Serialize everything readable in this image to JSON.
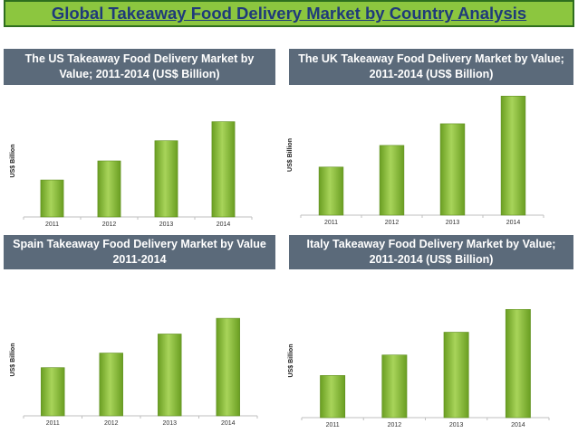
{
  "page": {
    "title": "Global Takeaway Food Delivery Market by Country Analysis",
    "colors": {
      "title_bg": "#8cc63f",
      "title_text": "#1f3a7a",
      "panel_title_bg": "#5b6a7a",
      "bar_light": "#a8d45a",
      "bar_dark": "#6a9e22",
      "axis": "#bfbfbf"
    }
  },
  "chart_data": [
    {
      "type": "bar",
      "title": "The US Takeaway Food Delivery Market by Value; 2011-2014 (US$ Billion)",
      "ylabel": "US$ Billion",
      "categories": [
        "2011",
        "2012",
        "2013",
        "2014"
      ],
      "values": [
        33,
        50,
        68,
        85
      ],
      "ylim": [
        0,
        100
      ],
      "grid": false
    },
    {
      "type": "bar",
      "title": "The UK Takeaway Food Delivery Market by Value; 2011-2014 (US$ Billion)",
      "ylabel": "US$ Billion",
      "categories": [
        "2011",
        "2012",
        "2013",
        "2014"
      ],
      "values": [
        40,
        58,
        76,
        99
      ],
      "ylim": [
        0,
        100
      ],
      "grid": false
    },
    {
      "type": "bar",
      "title": "Spain Takeaway Food Delivery Market by Value 2011-2014",
      "ylabel": "US$ Billion",
      "categories": [
        "2011",
        "2012",
        "2013",
        "2014"
      ],
      "values": [
        43,
        56,
        73,
        87
      ],
      "ylim": [
        0,
        100
      ],
      "grid": false
    },
    {
      "type": "bar",
      "title": "Italy Takeaway Food Delivery Market by Value; 2011-2014 (US$ Billion)",
      "ylabel": "US$ Billion",
      "categories": [
        "2011",
        "2012",
        "2013",
        "2014"
      ],
      "values": [
        37,
        55,
        75,
        95
      ],
      "ylim": [
        0,
        100
      ],
      "grid": false
    }
  ]
}
